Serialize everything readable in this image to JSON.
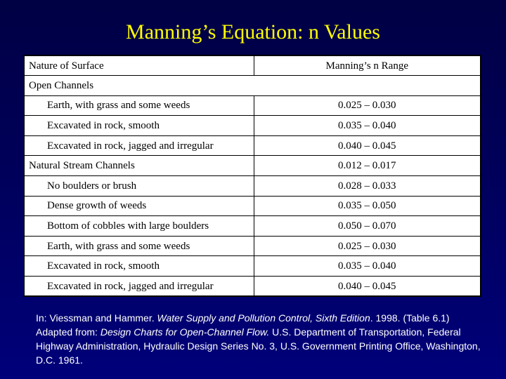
{
  "slide": {
    "title": "Manning’s Equation: n Values"
  },
  "table": {
    "headers": [
      "Nature of Surface",
      "Manning’s n Range"
    ],
    "rows": [
      {
        "surface": "Open Channels",
        "range": "",
        "indent": false,
        "span": true
      },
      {
        "surface": "Earth, with grass and some weeds",
        "range": "0.025 – 0.030",
        "indent": true
      },
      {
        "surface": "Excavated in rock, smooth",
        "range": "0.035 – 0.040",
        "indent": true
      },
      {
        "surface": "Excavated in rock, jagged and irregular",
        "range": "0.040 – 0.045",
        "indent": true
      },
      {
        "surface": "Natural Stream Channels",
        "range": "0.012 – 0.017",
        "indent": false
      },
      {
        "surface": "No boulders or brush",
        "range": "0.028 – 0.033",
        "indent": true
      },
      {
        "surface": "Dense growth of weeds",
        "range": "0.035 – 0.050",
        "indent": true
      },
      {
        "surface": "Bottom of cobbles with large boulders",
        "range": "0.050 – 0.070",
        "indent": true
      },
      {
        "surface": "Earth, with grass and some weeds",
        "range": "0.025 – 0.030",
        "indent": true
      },
      {
        "surface": "Excavated in rock, smooth",
        "range": "0.035 – 0.040",
        "indent": true
      },
      {
        "surface": "Excavated in rock, jagged and irregular",
        "range": "0.040 – 0.045",
        "indent": true
      }
    ]
  },
  "citation": {
    "p1": "In: Viessman and Hammer. ",
    "book_title": "Water Supply and Pollution Control, Sixth Edition",
    "p2": ". 1998. (Table 6.1) Adapted from: ",
    "source_title": "Design Charts for Open-Channel Flow.",
    "p3": " U.S. Department of Transportation, Federal Highway Administration, Hydraulic Design Series No. 3, U.S. Government Printing Office, Washington, D.C. 1961."
  },
  "colors": {
    "title": "#ffff00",
    "background_top": "#000044",
    "background_bottom": "#00007a",
    "citation_text": "#ffffff"
  }
}
